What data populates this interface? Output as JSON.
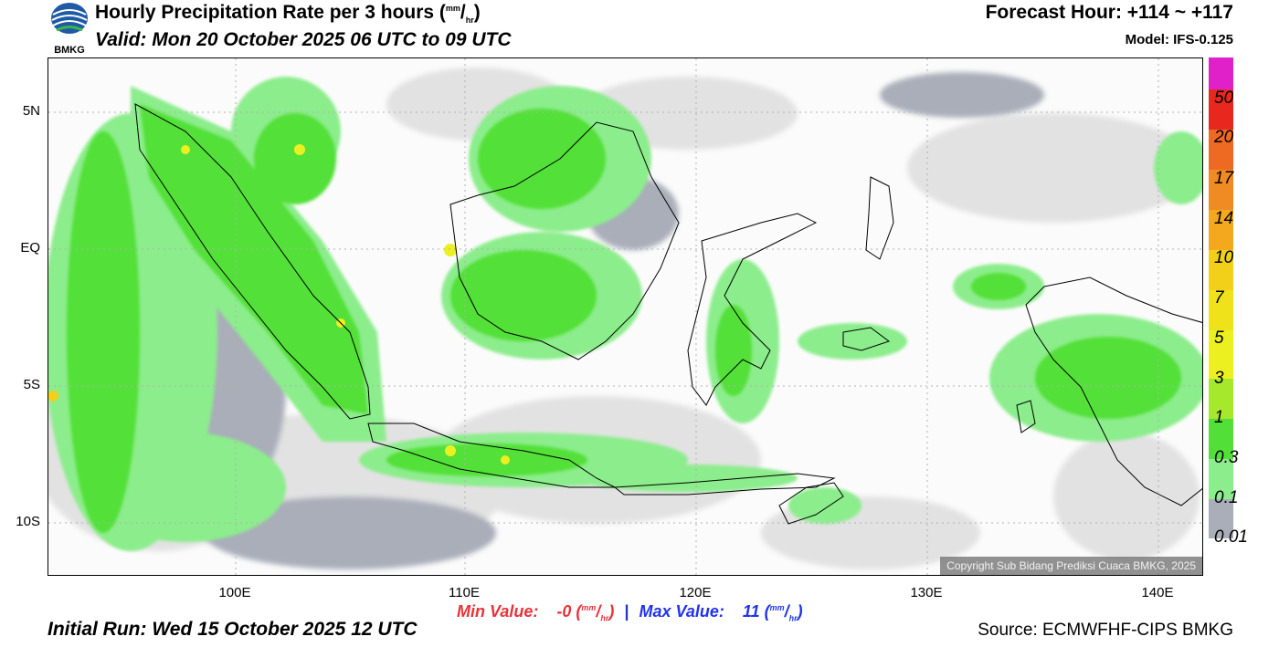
{
  "header": {
    "logo_text": "BMKG",
    "title_main": "Hourly Precipitation Rate per 3 hours (",
    "unit_num": "mm",
    "unit_den": "hr",
    "title_close": ")",
    "valid": "Valid: Mon 20 October 2025 06 UTC to 09 UTC",
    "forecast_hour": "Forecast Hour: +114 ~ +117",
    "model": "Model: IFS-0.125"
  },
  "map": {
    "lat_labels": [
      "5N",
      "EQ",
      "5S",
      "10S"
    ],
    "lon_labels": [
      "100E",
      "110E",
      "120E",
      "130E",
      "140E"
    ],
    "copyright": "Copyright Sub Bidang Prediksi Cuaca BMKG, 2025"
  },
  "colorbar": {
    "labels": [
      "50",
      "20",
      "17",
      "14",
      "10",
      "7",
      "5",
      "3",
      "1",
      "0.3",
      "0.1",
      "0.01"
    ],
    "colors": [
      "#e020c8",
      "#e8281e",
      "#ee6a22",
      "#f08a22",
      "#f4a81e",
      "#f2cf18",
      "#f0e21a",
      "#ecf020",
      "#a6e82c",
      "#52e038",
      "#8ced8c",
      "#a9aeb9",
      "#e2e2e2"
    ]
  },
  "footer": {
    "min_label": "Min Value:",
    "min_value": "-0",
    "max_label": "Max Value:",
    "max_value": "11",
    "sep": "|",
    "initial_run": "Initial Run: Wed 15 October 2025 12 UTC",
    "source": "Source: ECMWFHF-CIPS BMKG"
  }
}
